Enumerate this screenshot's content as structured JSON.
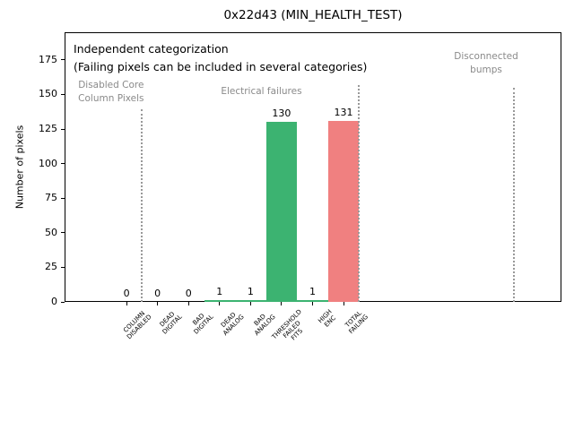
{
  "title": "0x22d43 (MIN_HEALTH_TEST)",
  "chart_data": {
    "type": "bar",
    "title": "0x22d43 (MIN_HEALTH_TEST)",
    "xlabel": "",
    "ylabel": "Number of pixels",
    "categories": [
      [
        "COLUMN",
        "DISABLED"
      ],
      [
        "DEAD",
        "DIGITAL"
      ],
      [
        "BAD",
        "DIGITAL"
      ],
      [
        "DEAD",
        "ANALOG"
      ],
      [
        "BAD",
        "ANALOG"
      ],
      [
        "THRESHOLD",
        "FAILED",
        "FITS"
      ],
      [
        "HIGH",
        "ENC"
      ],
      [
        "TOTAL",
        "FAILING"
      ]
    ],
    "values": [
      0,
      0,
      0,
      1,
      1,
      130,
      1,
      131
    ],
    "bar_labels": [
      "0",
      "0",
      "0",
      "1",
      "1",
      "130",
      "1",
      "131"
    ],
    "bar_colors": [
      "#3cb371",
      "#3cb371",
      "#3cb371",
      "#3cb371",
      "#3cb371",
      "#3cb371",
      "#3cb371",
      "#f08080"
    ],
    "bar_width": 1.0,
    "yticks": [
      0,
      25,
      50,
      75,
      100,
      125,
      150,
      175
    ],
    "ylim": [
      0,
      195
    ],
    "xlim": [
      -2,
      14.03
    ],
    "grid": false,
    "legend": null,
    "note": {
      "lines": [
        "Independent categorization",
        "(Failing pixels can be included in several categories)"
      ],
      "x": -1.71,
      "y": 189
    },
    "group_labels": [
      {
        "lines": [
          "Disabled Core",
          "Column Pixels"
        ],
        "x": -0.5,
        "y": 161
      },
      {
        "lines": [
          "Electrical failures"
        ],
        "x": 4.35,
        "y": 157
      },
      {
        "lines": [
          "Disconnected",
          "bumps"
        ],
        "x": 11.6,
        "y": 182
      }
    ],
    "separators": [
      {
        "x": 0.5,
        "y_top": 139
      },
      {
        "x": 7.5,
        "y_top": 157
      },
      {
        "x": 12.5,
        "y_top": 155
      }
    ],
    "colors": {
      "green_bar": "#3cb371",
      "red_bar": "#f08080",
      "group_label": "#8a8a8a",
      "separator": "#999999",
      "axis": "#000000",
      "background": "#ffffff"
    }
  }
}
